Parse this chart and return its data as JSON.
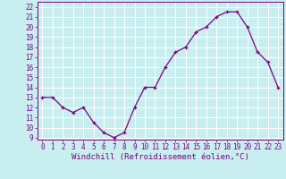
{
  "x": [
    0,
    1,
    2,
    3,
    4,
    5,
    6,
    7,
    8,
    9,
    10,
    11,
    12,
    13,
    14,
    15,
    16,
    17,
    18,
    19,
    20,
    21,
    22,
    23
  ],
  "y": [
    13,
    13,
    12,
    11.5,
    12,
    10.5,
    9.5,
    9,
    9.5,
    12,
    14,
    14,
    16,
    17.5,
    18,
    19.5,
    20,
    21,
    21.5,
    21.5,
    20,
    17.5,
    16.5,
    14
  ],
  "line_color": "#800080",
  "marker": "+",
  "marker_size": 3.5,
  "bg_color": "#c8eef0",
  "grid_color": "#ffffff",
  "xlabel": "Windchill (Refroidissement éolien,°C)",
  "xlabel_fontsize": 6.5,
  "tick_fontsize": 5.5,
  "ylim": [
    8.8,
    22.5
  ],
  "yticks": [
    9,
    10,
    11,
    12,
    13,
    14,
    15,
    16,
    17,
    18,
    19,
    20,
    21,
    22
  ],
  "xlim": [
    -0.5,
    23.5
  ],
  "xticks": [
    0,
    1,
    2,
    3,
    4,
    5,
    6,
    7,
    8,
    9,
    10,
    11,
    12,
    13,
    14,
    15,
    16,
    17,
    18,
    19,
    20,
    21,
    22,
    23
  ]
}
